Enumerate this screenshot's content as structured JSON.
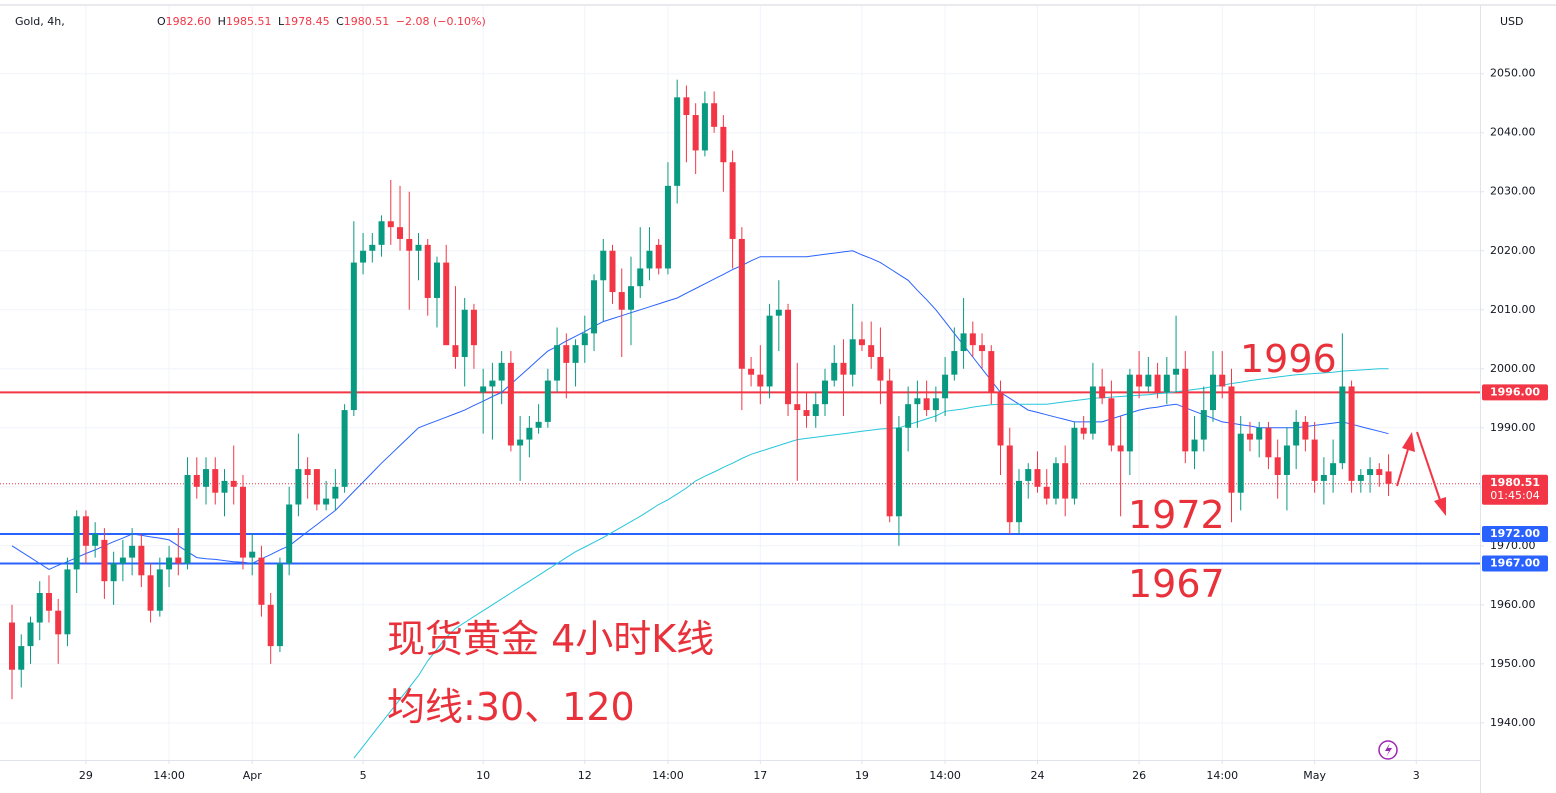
{
  "chart_data": {
    "type": "candlestick",
    "header": {
      "symbol": "Gold, 4h,",
      "items": [
        {
          "key": "O",
          "value": "1982.60"
        },
        {
          "key": "H",
          "value": "1985.51"
        },
        {
          "key": "L",
          "value": "1978.45"
        },
        {
          "key": "C",
          "value": "1980.51"
        }
      ],
      "change": "−2.08 (−0.10%)"
    },
    "currency": "USD",
    "up_color": "#089981",
    "down_color": "#f23645",
    "ohlc": [
      [
        1957,
        1960,
        1944,
        1949
      ],
      [
        1949,
        1955,
        1946,
        1953
      ],
      [
        1953,
        1958,
        1950,
        1957
      ],
      [
        1957,
        1964,
        1954,
        1962
      ],
      [
        1962,
        1965,
        1957,
        1959
      ],
      [
        1959,
        1961,
        1950,
        1955
      ],
      [
        1955,
        1968,
        1953,
        1966
      ],
      [
        1966,
        1976,
        1962,
        1975
      ],
      [
        1975,
        1976,
        1967,
        1970
      ],
      [
        1970,
        1974,
        1968,
        1972
      ],
      [
        1971,
        1973,
        1961,
        1964
      ],
      [
        1964,
        1969,
        1960,
        1967
      ],
      [
        1967,
        1971,
        1964,
        1968
      ],
      [
        1968,
        1973,
        1965,
        1970
      ],
      [
        1970,
        1972,
        1963,
        1965
      ],
      [
        1965,
        1967,
        1957,
        1959
      ],
      [
        1959,
        1968,
        1958,
        1966
      ],
      [
        1966,
        1970,
        1963,
        1968
      ],
      [
        1968,
        1973,
        1965,
        1967
      ],
      [
        1967,
        1985,
        1966,
        1982
      ],
      [
        1982,
        1985,
        1978,
        1980
      ],
      [
        1980,
        1985,
        1977,
        1983
      ],
      [
        1983,
        1985,
        1977,
        1979
      ],
      [
        1979,
        1983,
        1975,
        1981
      ],
      [
        1981,
        1987,
        1977,
        1980
      ],
      [
        1980,
        1982,
        1966,
        1968
      ],
      [
        1968,
        1972,
        1965,
        1969
      ],
      [
        1968,
        1970,
        1958,
        1960
      ],
      [
        1960,
        1962,
        1950,
        1953
      ],
      [
        1953,
        1968,
        1952,
        1967
      ],
      [
        1967,
        1980,
        1965,
        1977
      ],
      [
        1977,
        1989,
        1975,
        1983
      ],
      [
        1983,
        1985,
        1978,
        1982
      ],
      [
        1983,
        1983,
        1976,
        1977
      ],
      [
        1977,
        1981,
        1976,
        1978
      ],
      [
        1978,
        1983,
        1976,
        1980
      ],
      [
        1980,
        1994,
        1979,
        1993
      ],
      [
        1993,
        2025,
        1992,
        2018
      ],
      [
        2018,
        2023,
        2016,
        2020
      ],
      [
        2020,
        2023,
        2018,
        2021
      ],
      [
        2021,
        2026,
        2019,
        2025
      ],
      [
        2025,
        2032,
        2021,
        2024
      ],
      [
        2024,
        2031,
        2020,
        2022
      ],
      [
        2022,
        2030,
        2010,
        2020
      ],
      [
        2020,
        2023,
        2015,
        2021
      ],
      [
        2021,
        2022,
        2009,
        2012
      ],
      [
        2012,
        2019,
        2007,
        2018
      ],
      [
        2018,
        2021,
        2004,
        2004
      ],
      [
        2004,
        2014,
        2000,
        2002
      ],
      [
        2002,
        2012,
        1997,
        2010
      ],
      [
        2010,
        2011,
        2000,
        2004
      ],
      [
        1996,
        2000,
        1989,
        1997
      ],
      [
        1997,
        2001,
        1988,
        1998
      ],
      [
        1998,
        2003,
        1994,
        2001
      ],
      [
        2001,
        2003,
        1986,
        1987
      ],
      [
        1987,
        1992,
        1981,
        1988
      ],
      [
        1988,
        1992,
        1985,
        1990
      ],
      [
        1990,
        1994,
        1989,
        1991
      ],
      [
        1991,
        2000,
        1990,
        1998
      ],
      [
        1998,
        2007,
        1996,
        2004
      ],
      [
        2004,
        2006,
        1995,
        2001
      ],
      [
        2001,
        2005,
        1997,
        2004
      ],
      [
        2004,
        2009,
        2001,
        2006
      ],
      [
        2006,
        2016,
        2003,
        2015
      ],
      [
        2015,
        2022,
        2008,
        2020
      ],
      [
        2020,
        2021,
        2011,
        2013
      ],
      [
        2013,
        2017,
        2002,
        2010
      ],
      [
        2010,
        2019,
        2004,
        2014
      ],
      [
        2014,
        2024,
        2012,
        2017
      ],
      [
        2017,
        2024,
        2015,
        2020
      ],
      [
        2021,
        2022,
        2016,
        2017
      ],
      [
        2017,
        2035,
        2016,
        2031
      ],
      [
        2031,
        2049,
        2028,
        2046
      ],
      [
        2046,
        2048,
        2035,
        2043
      ],
      [
        2043,
        2045,
        2033,
        2037
      ],
      [
        2037,
        2047,
        2036,
        2045
      ],
      [
        2045,
        2047,
        2040,
        2041
      ],
      [
        2041,
        2043,
        2030,
        2035
      ],
      [
        2035,
        2037,
        2017,
        2022
      ],
      [
        2022,
        2024,
        1993,
        2000
      ],
      [
        2000,
        2002,
        1997,
        1999
      ],
      [
        1999,
        2004,
        1994,
        1997
      ],
      [
        1997,
        2011,
        1995,
        2009
      ],
      [
        2009,
        2015,
        2003,
        2010
      ],
      [
        2010,
        2011,
        1992,
        1994
      ],
      [
        1994,
        2001,
        1981,
        1993
      ],
      [
        1993,
        1996,
        1990,
        1992
      ],
      [
        1992,
        1996,
        1990,
        1994
      ],
      [
        1994,
        2000,
        1992,
        1998
      ],
      [
        1998,
        2004,
        1997,
        2001
      ],
      [
        2001,
        2005,
        1992,
        1999
      ],
      [
        1999,
        2011,
        1997,
        2005
      ],
      [
        2005,
        2008,
        2003,
        2004
      ],
      [
        2004,
        2008,
        2000,
        2002
      ],
      [
        2002,
        2007,
        1994,
        1998
      ],
      [
        1998,
        2000,
        1974,
        1975
      ],
      [
        1975,
        1992,
        1970,
        1990
      ],
      [
        1990,
        1997,
        1986,
        1994
      ],
      [
        1994,
        1998,
        1990,
        1995
      ],
      [
        1995,
        1998,
        1992,
        1993
      ],
      [
        1993,
        1997,
        1991,
        1995
      ],
      [
        1995,
        2002,
        1992,
        1999
      ],
      [
        1999,
        2007,
        1998,
        2003
      ],
      [
        2003,
        2012,
        2000,
        2006
      ],
      [
        2006,
        2008,
        2002,
        2004
      ],
      [
        2004,
        2006,
        2000,
        2003
      ],
      [
        2003,
        2004,
        1994,
        1996
      ],
      [
        1996,
        1998,
        1982,
        1987
      ],
      [
        1987,
        1990,
        1972,
        1974
      ],
      [
        1974,
        1983,
        1972,
        1981
      ],
      [
        1981,
        1984,
        1978,
        1983
      ],
      [
        1983,
        1986,
        1979,
        1980
      ],
      [
        1980,
        1983,
        1977,
        1978
      ],
      [
        1978,
        1985,
        1977,
        1984
      ],
      [
        1984,
        1987,
        1975,
        1978
      ],
      [
        1978,
        1991,
        1977,
        1990
      ],
      [
        1990,
        1992,
        1988,
        1989
      ],
      [
        1989,
        2001,
        1988,
        1997
      ],
      [
        1997,
        2000,
        1994,
        1995
      ],
      [
        1995,
        1998,
        1986,
        1987
      ],
      [
        1987,
        1992,
        1975,
        1986
      ],
      [
        1986,
        2000,
        1982,
        1999
      ],
      [
        1999,
        2003,
        1995,
        1997
      ],
      [
        1997,
        2002,
        1996,
        1999
      ],
      [
        1999,
        2001,
        1995,
        1996
      ],
      [
        1996,
        2002,
        1994,
        1999
      ],
      [
        1999,
        2009,
        1996,
        2000
      ],
      [
        2000,
        2003,
        1984,
        1986
      ],
      [
        1986,
        1992,
        1983,
        1988
      ],
      [
        1988,
        1997,
        1986,
        1993
      ],
      [
        1993,
        2003,
        1991,
        1999
      ],
      [
        1999,
        2003,
        1995,
        1997
      ],
      [
        1997,
        2000,
        1974,
        1979
      ],
      [
        1979,
        1992,
        1976,
        1989
      ],
      [
        1989,
        1991,
        1986,
        1988
      ],
      [
        1988,
        1991,
        1985,
        1990
      ],
      [
        1990,
        1991,
        1983,
        1985
      ],
      [
        1985,
        1988,
        1978,
        1982
      ],
      [
        1982,
        1990,
        1976,
        1987
      ],
      [
        1987,
        1993,
        1983,
        1991
      ],
      [
        1991,
        1992,
        1986,
        1988
      ],
      [
        1988,
        1991,
        1979,
        1981
      ],
      [
        1981,
        1985,
        1977,
        1982
      ],
      [
        1982,
        1988,
        1979,
        1984
      ],
      [
        1984,
        2006,
        1983,
        1997
      ],
      [
        1997,
        1998,
        1979,
        1981
      ],
      [
        1981,
        1983,
        1979,
        1982
      ],
      [
        1982,
        1985,
        1979,
        1983
      ],
      [
        1983,
        1984,
        1980,
        1982
      ],
      [
        1982.6,
        1985.51,
        1978.45,
        1980.51
      ]
    ],
    "moving_averages": [
      {
        "color": "#2962ff",
        "values": [
          1970,
          1969,
          1968,
          1967,
          1966,
          1966.7,
          1967.3,
          1968,
          1968.7,
          1969.3,
          1970,
          1970.7,
          1971.3,
          1972,
          1971.8,
          1971.5,
          1971.3,
          1971,
          1970,
          1969,
          1968,
          1967.8,
          1967.7,
          1967.5,
          1967.3,
          1967.2,
          1967,
          1967.8,
          1968.5,
          1969.3,
          1970,
          1971.2,
          1972.4,
          1973.6,
          1974.8,
          1976,
          1977.6,
          1979.2,
          1980.8,
          1982.4,
          1984,
          1985.5,
          1987,
          1988.5,
          1990,
          1990.6,
          1991.2,
          1991.8,
          1992.4,
          1993,
          1993.8,
          1994.5,
          1995.3,
          1996,
          1997.4,
          1998.8,
          2000.2,
          2001.6,
          2003,
          2003.8,
          2004.7,
          2005.5,
          2006.3,
          2007.2,
          2008,
          2008.5,
          2009,
          2009.5,
          2010,
          2010.5,
          2011,
          2011.5,
          2012,
          2012.8,
          2013.6,
          2014.4,
          2015.2,
          2016,
          2016.8,
          2017.5,
          2018.3,
          2019,
          2019,
          2019,
          2019,
          2019,
          2019,
          2019.2,
          2019.4,
          2019.6,
          2019.8,
          2020,
          2019.3,
          2018.7,
          2018,
          2017,
          2016,
          2015,
          2013.3,
          2011.7,
          2010,
          2008,
          2006,
          2004,
          2002,
          2000,
          1998,
          1996,
          1995,
          1994,
          1993,
          1992.6,
          1992.2,
          1991.8,
          1991.4,
          1991,
          1991,
          1991,
          1991,
          1991.5,
          1992,
          1992.5,
          1993,
          1993.3,
          1993.5,
          1993.8,
          1994,
          1993.4,
          1992.8,
          1992.2,
          1991.6,
          1991,
          1990.8,
          1990.5,
          1990.3,
          1990,
          1990,
          1990,
          1990,
          1990,
          1990.2,
          1990.4,
          1990.6,
          1990.8,
          1991,
          1990.6,
          1990.2,
          1989.8,
          1989.4,
          1989
        ]
      },
      {
        "color": "#26c6da",
        "values": [
          null,
          null,
          null,
          null,
          null,
          null,
          null,
          null,
          null,
          null,
          null,
          null,
          null,
          null,
          null,
          null,
          null,
          null,
          null,
          null,
          null,
          null,
          null,
          null,
          null,
          null,
          null,
          null,
          null,
          null,
          null,
          null,
          null,
          null,
          null,
          null,
          null,
          1934,
          1936,
          1938,
          1940,
          1942,
          1944,
          1946,
          1948,
          1950.5,
          1952.5,
          1954.5,
          1956,
          1957,
          1958,
          1959,
          1960,
          1961,
          1962,
          1963,
          1964,
          1965,
          1966,
          1967,
          1968,
          1969,
          1969.8,
          1970.6,
          1971.4,
          1972.3,
          1973.2,
          1974.1,
          1975,
          1976,
          1977,
          1977.8,
          1978.8,
          1979.8,
          1981,
          1981.8,
          1982.5,
          1983.3,
          1984,
          1984.8,
          1985.5,
          1986,
          1986.5,
          1987,
          1987.5,
          1988,
          1988.2,
          1988.4,
          1988.6,
          1988.8,
          1989,
          1989.2,
          1989.4,
          1989.6,
          1989.8,
          1989.9,
          1990,
          1990.5,
          1991,
          1991.5,
          1992,
          1992.8,
          1993,
          1993.2,
          1993.5,
          1993.7,
          1993.9,
          1994,
          1994,
          1994,
          1994,
          1994,
          1994,
          1994.2,
          1994.4,
          1994.6,
          1994.8,
          1995,
          1995.1,
          1995.2,
          1995.3,
          1995.4,
          1995.5,
          1995.6,
          1995.8,
          1995.9,
          1996.1,
          1996.3,
          1996.5,
          1996.7,
          1997,
          1997.2,
          1997.5,
          1997.7,
          1998,
          1998.2,
          1998.4,
          1998.6,
          1998.8,
          1999,
          1999.1,
          1999.2,
          1999.3,
          1999.4,
          1999.6,
          1999.7,
          1999.8,
          1999.9,
          2000,
          2000
        ]
      }
    ],
    "levels": [
      {
        "value": 1996,
        "label": "1996.00",
        "color": "#f23645"
      },
      {
        "value": 1972,
        "label": "1972.00",
        "color": "#2962ff"
      },
      {
        "value": 1967,
        "label": "1967.00",
        "color": "#2962ff"
      }
    ],
    "last_price": {
      "value": 1980.51,
      "countdown": "01:45:04",
      "color": "#f23645"
    },
    "annotations": [
      "现货黄金 4小时K线",
      "均线:30、120"
    ],
    "xlim": [
      -1.3,
      158.9
    ],
    "ylim": [
      1933.7,
      2060.8
    ],
    "xticks": [
      {
        "value": 8,
        "label": "29"
      },
      {
        "value": 17,
        "label": "14:00"
      },
      {
        "value": 26,
        "label": "Apr"
      },
      {
        "value": 38,
        "label": "5"
      },
      {
        "value": 51,
        "label": "10"
      },
      {
        "value": 62,
        "label": "12"
      },
      {
        "value": 71,
        "label": "14:00"
      },
      {
        "value": 81,
        "label": "17"
      },
      {
        "value": 92,
        "label": "19"
      },
      {
        "value": 101,
        "label": "14:00"
      },
      {
        "value": 111,
        "label": "24"
      },
      {
        "value": 122,
        "label": "26"
      },
      {
        "value": 131,
        "label": "14:00"
      },
      {
        "value": 141,
        "label": "May"
      },
      {
        "value": 152,
        "label": "3"
      }
    ],
    "yticks": [
      {
        "value": 1940,
        "label": "1940.00"
      },
      {
        "value": 1950,
        "label": "1950.00"
      },
      {
        "value": 1960,
        "label": "1960.00"
      },
      {
        "value": 1970,
        "label": "1970.00"
      },
      {
        "value": 1980,
        "label": "1980.00"
      },
      {
        "value": 1990,
        "label": "1990.00"
      },
      {
        "value": 2000,
        "label": "2000.00"
      },
      {
        "value": 2010,
        "label": "2010.00"
      },
      {
        "value": 2020,
        "label": "2020.00"
      },
      {
        "value": 2030,
        "label": "2030.00"
      },
      {
        "value": 2040,
        "label": "2040.00"
      },
      {
        "value": 2050,
        "label": "2050.00"
      }
    ],
    "grid": true
  }
}
